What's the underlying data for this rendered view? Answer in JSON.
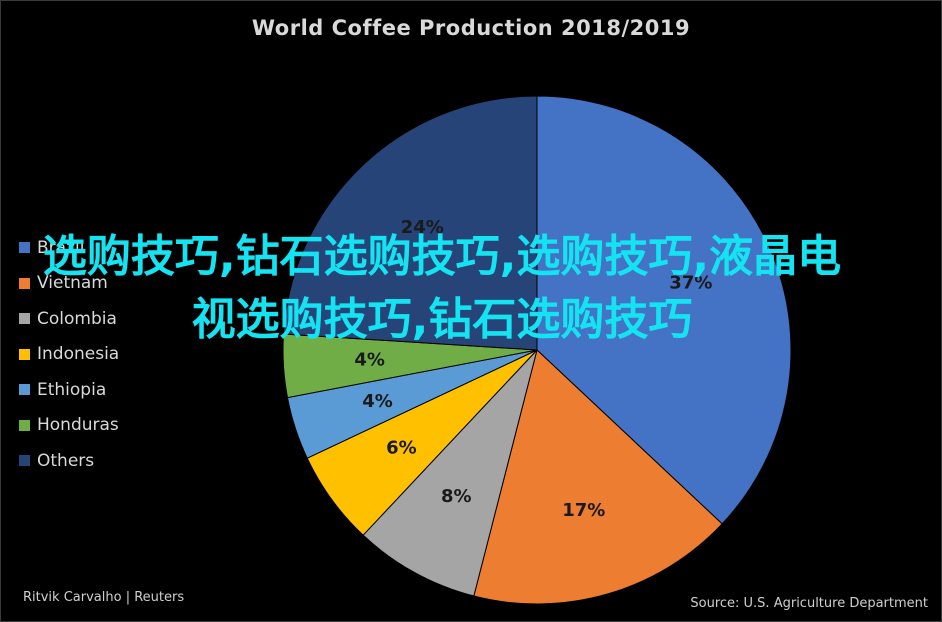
{
  "title": "World Coffee Production 2018/2019",
  "chart_data": {
    "type": "pie",
    "title": "World Coffee Production 2018/2019",
    "slices": [
      {
        "name": "Brazil",
        "value": 37,
        "label": "37%",
        "color": "#4472c4"
      },
      {
        "name": "Vietnam",
        "value": 17,
        "label": "17%",
        "color": "#ed7d31"
      },
      {
        "name": "Colombia",
        "value": 8,
        "label": "8%",
        "color": "#a5a5a5"
      },
      {
        "name": "Indonesia",
        "value": 6,
        "label": "6%",
        "color": "#ffc000"
      },
      {
        "name": "Ethiopia",
        "value": 4,
        "label": "4%",
        "color": "#5b9bd5"
      },
      {
        "name": "Honduras",
        "value": 4,
        "label": "4%",
        "color": "#70ad47"
      },
      {
        "name": "Others",
        "value": 24,
        "label": "24%",
        "color": "#264478"
      }
    ],
    "legend_position": "left",
    "legend": [
      "Brazil",
      "Vietnam",
      "Colombia",
      "Indonesia",
      "Ethiopia",
      "Honduras",
      "Others"
    ]
  },
  "overlay_text": "选购技巧,钻石选购技巧,选购技巧,液晶电视选购技巧,钻石选购技巧",
  "credit": "Ritvik Carvalho | Reuters",
  "source": "Source: U.S. Agriculture Department"
}
